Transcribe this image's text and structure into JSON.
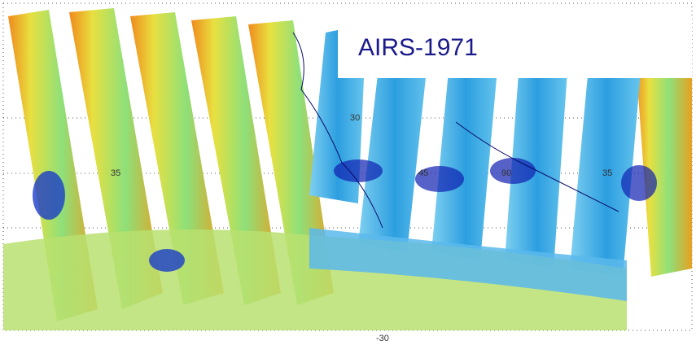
{
  "title": "AIRS-1971",
  "map_labels": {
    "latitude": [
      "30",
      "-30"
    ],
    "longitude": [
      "35",
      "45",
      "90",
      "35"
    ]
  }
}
